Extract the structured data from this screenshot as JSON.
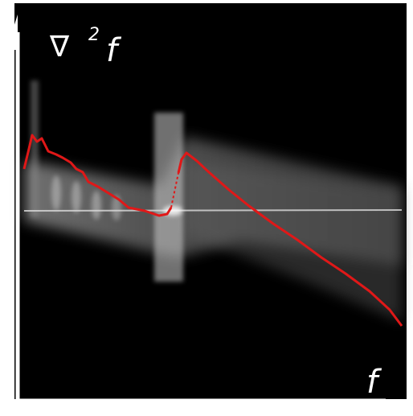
{
  "axes": {
    "y_label": {
      "symbol": "∇",
      "superscript": "2",
      "variable": "f"
    },
    "x_label": "f"
  }
}
